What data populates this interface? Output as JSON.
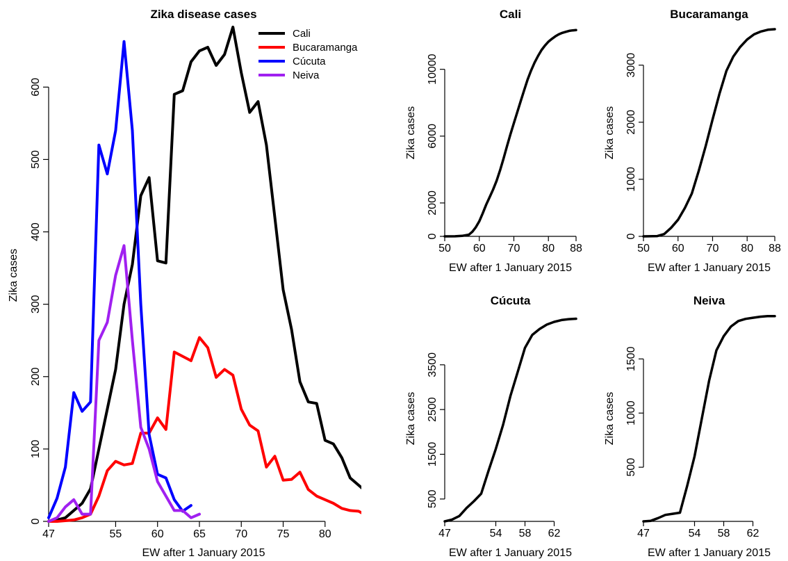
{
  "chart_data": [
    {
      "type": "line",
      "title": "Zika disease cases",
      "xlabel": "EW after 1 January 2015",
      "ylabel": "Zika cases",
      "xlim": [
        47,
        84
      ],
      "ylim": [
        0,
        680
      ],
      "xticks": [
        47,
        55,
        60,
        65,
        70,
        75,
        80
      ],
      "yticks": [
        0,
        100,
        200,
        300,
        400,
        500,
        600
      ],
      "legend_position": "top-right",
      "series": [
        {
          "name": "Cali",
          "color": "#000000",
          "points": [
            [
              47,
              0
            ],
            [
              48,
              2
            ],
            [
              49,
              5
            ],
            [
              50,
              15
            ],
            [
              51,
              25
            ],
            [
              52,
              45
            ],
            [
              53,
              100
            ],
            [
              54,
              155
            ],
            [
              55,
              210
            ],
            [
              56,
              300
            ],
            [
              57,
              355
            ],
            [
              58,
              450
            ],
            [
              59,
              475
            ],
            [
              60,
              360
            ],
            [
              61,
              357
            ],
            [
              62,
              590
            ],
            [
              63,
              595
            ],
            [
              64,
              635
            ],
            [
              65,
              650
            ],
            [
              66,
              655
            ],
            [
              67,
              630
            ],
            [
              68,
              645
            ],
            [
              69,
              683
            ],
            [
              70,
              620
            ],
            [
              71,
              565
            ],
            [
              72,
              580
            ],
            [
              73,
              520
            ],
            [
              74,
              420
            ],
            [
              75,
              320
            ],
            [
              76,
              265
            ],
            [
              77,
              193
            ],
            [
              78,
              165
            ],
            [
              79,
              163
            ],
            [
              80,
              112
            ],
            [
              81,
              107
            ],
            [
              82,
              88
            ],
            [
              83,
              60
            ],
            [
              84,
              50
            ],
            [
              85,
              40
            ]
          ]
        },
        {
          "name": "Bucaramanga",
          "color": "#ff0000",
          "points": [
            [
              47,
              0
            ],
            [
              48,
              0
            ],
            [
              49,
              1
            ],
            [
              50,
              2
            ],
            [
              51,
              5
            ],
            [
              52,
              10
            ],
            [
              53,
              35
            ],
            [
              54,
              70
            ],
            [
              55,
              83
            ],
            [
              56,
              78
            ],
            [
              57,
              80
            ],
            [
              58,
              122
            ],
            [
              59,
              122
            ],
            [
              60,
              143
            ],
            [
              61,
              127
            ],
            [
              62,
              234
            ],
            [
              63,
              228
            ],
            [
              64,
              222
            ],
            [
              65,
              254
            ],
            [
              66,
              240
            ],
            [
              67,
              199
            ],
            [
              68,
              210
            ],
            [
              69,
              202
            ],
            [
              70,
              155
            ],
            [
              71,
              133
            ],
            [
              72,
              125
            ],
            [
              73,
              75
            ],
            [
              74,
              90
            ],
            [
              75,
              57
            ],
            [
              76,
              58
            ],
            [
              77,
              68
            ],
            [
              78,
              44
            ],
            [
              79,
              35
            ],
            [
              80,
              30
            ],
            [
              81,
              25
            ],
            [
              82,
              18
            ],
            [
              83,
              15
            ],
            [
              84,
              14
            ],
            [
              85,
              8
            ]
          ]
        },
        {
          "name": "Cúcuta",
          "color": "#0000ff",
          "points": [
            [
              47,
              5
            ],
            [
              48,
              32
            ],
            [
              49,
              75
            ],
            [
              50,
              178
            ],
            [
              51,
              152
            ],
            [
              52,
              165
            ],
            [
              53,
              520
            ],
            [
              54,
              480
            ],
            [
              55,
              540
            ],
            [
              56,
              663
            ],
            [
              57,
              540
            ],
            [
              58,
              300
            ],
            [
              59,
              120
            ],
            [
              60,
              65
            ],
            [
              61,
              60
            ],
            [
              62,
              30
            ],
            [
              63,
              14
            ],
            [
              64,
              22
            ]
          ]
        },
        {
          "name": "Neiva",
          "color": "#a020f0",
          "points": [
            [
              47,
              0
            ],
            [
              48,
              5
            ],
            [
              49,
              20
            ],
            [
              50,
              30
            ],
            [
              51,
              10
            ],
            [
              52,
              10
            ],
            [
              53,
              250
            ],
            [
              54,
              275
            ],
            [
              55,
              340
            ],
            [
              56,
              381
            ],
            [
              57,
              250
            ],
            [
              58,
              130
            ],
            [
              59,
              100
            ],
            [
              60,
              55
            ],
            [
              61,
              35
            ],
            [
              62,
              15
            ],
            [
              63,
              15
            ],
            [
              64,
              5
            ],
            [
              65,
              10
            ]
          ]
        }
      ]
    },
    {
      "type": "line",
      "title": "Cali",
      "xlabel": "EW after 1 January 2015",
      "ylabel": "Zika cases",
      "xlim": [
        50,
        88
      ],
      "ylim": [
        0,
        12400
      ],
      "xticks": [
        50,
        60,
        70,
        80,
        88
      ],
      "yticks": [
        0,
        2000,
        6000,
        10000
      ],
      "series": [
        {
          "points": [
            [
              50,
              0
            ],
            [
              53,
              5
            ],
            [
              55,
              30
            ],
            [
              57,
              100
            ],
            [
              58,
              280
            ],
            [
              59,
              550
            ],
            [
              60,
              900
            ],
            [
              61,
              1380
            ],
            [
              62,
              1900
            ],
            [
              63,
              2350
            ],
            [
              64,
              2800
            ],
            [
              65,
              3320
            ],
            [
              66,
              3950
            ],
            [
              67,
              4650
            ],
            [
              68,
              5380
            ],
            [
              69,
              6100
            ],
            [
              70,
              6780
            ],
            [
              71,
              7430
            ],
            [
              72,
              8100
            ],
            [
              73,
              8760
            ],
            [
              74,
              9400
            ],
            [
              75,
              9930
            ],
            [
              76,
              10400
            ],
            [
              77,
              10800
            ],
            [
              78,
              11150
            ],
            [
              79,
              11420
            ],
            [
              80,
              11650
            ],
            [
              81,
              11820
            ],
            [
              82,
              11970
            ],
            [
              83,
              12090
            ],
            [
              84,
              12180
            ],
            [
              85,
              12240
            ],
            [
              86,
              12300
            ],
            [
              87,
              12330
            ],
            [
              88,
              12350
            ]
          ]
        }
      ]
    },
    {
      "type": "line",
      "title": "Bucaramanga",
      "xlabel": "EW after 1 January 2015",
      "ylabel": "Zika cases",
      "xlim": [
        50,
        88
      ],
      "ylim": [
        0,
        3630
      ],
      "xticks": [
        50,
        60,
        70,
        80,
        88
      ],
      "yticks": [
        0,
        1000,
        2000,
        3000
      ],
      "series": [
        {
          "points": [
            [
              50,
              0
            ],
            [
              54,
              5
            ],
            [
              56,
              40
            ],
            [
              58,
              150
            ],
            [
              60,
              290
            ],
            [
              62,
              500
            ],
            [
              64,
              750
            ],
            [
              66,
              1150
            ],
            [
              68,
              1580
            ],
            [
              70,
              2050
            ],
            [
              72,
              2500
            ],
            [
              74,
              2900
            ],
            [
              76,
              3150
            ],
            [
              78,
              3320
            ],
            [
              80,
              3450
            ],
            [
              82,
              3540
            ],
            [
              84,
              3590
            ],
            [
              86,
              3620
            ],
            [
              88,
              3630
            ]
          ]
        }
      ]
    },
    {
      "type": "line",
      "title": "Cúcuta",
      "xlabel": "EW after 1 January 2015",
      "ylabel": "Zika cases",
      "xlim": [
        47,
        65
      ],
      "ylim": [
        0,
        4600
      ],
      "xticks": [
        47,
        54,
        58,
        62
      ],
      "yticks": [
        500,
        1500,
        2500,
        3500
      ],
      "series": [
        {
          "points": [
            [
              47,
              0
            ],
            [
              48,
              40
            ],
            [
              49,
              120
            ],
            [
              50,
              300
            ],
            [
              51,
              450
            ],
            [
              52,
              620
            ],
            [
              53,
              1130
            ],
            [
              54,
              1620
            ],
            [
              55,
              2160
            ],
            [
              56,
              2800
            ],
            [
              57,
              3340
            ],
            [
              58,
              3880
            ],
            [
              59,
              4170
            ],
            [
              60,
              4300
            ],
            [
              61,
              4400
            ],
            [
              62,
              4460
            ],
            [
              63,
              4500
            ],
            [
              64,
              4520
            ],
            [
              65,
              4530
            ]
          ]
        }
      ]
    },
    {
      "type": "line",
      "title": "Neiva",
      "xlabel": "EW after 1 January 2015",
      "ylabel": "Zika cases",
      "xlim": [
        47,
        65
      ],
      "ylim": [
        0,
        1900
      ],
      "xticks": [
        47,
        54,
        58,
        62
      ],
      "yticks": [
        500,
        1000,
        1500
      ],
      "series": [
        {
          "points": [
            [
              47,
              0
            ],
            [
              48,
              5
            ],
            [
              49,
              30
            ],
            [
              50,
              60
            ],
            [
              51,
              70
            ],
            [
              52,
              80
            ],
            [
              53,
              330
            ],
            [
              54,
              600
            ],
            [
              55,
              950
            ],
            [
              56,
              1300
            ],
            [
              57,
              1580
            ],
            [
              58,
              1710
            ],
            [
              59,
              1800
            ],
            [
              60,
              1850
            ],
            [
              61,
              1870
            ],
            [
              62,
              1880
            ],
            [
              63,
              1890
            ],
            [
              64,
              1895
            ],
            [
              65,
              1895
            ]
          ]
        }
      ]
    }
  ]
}
